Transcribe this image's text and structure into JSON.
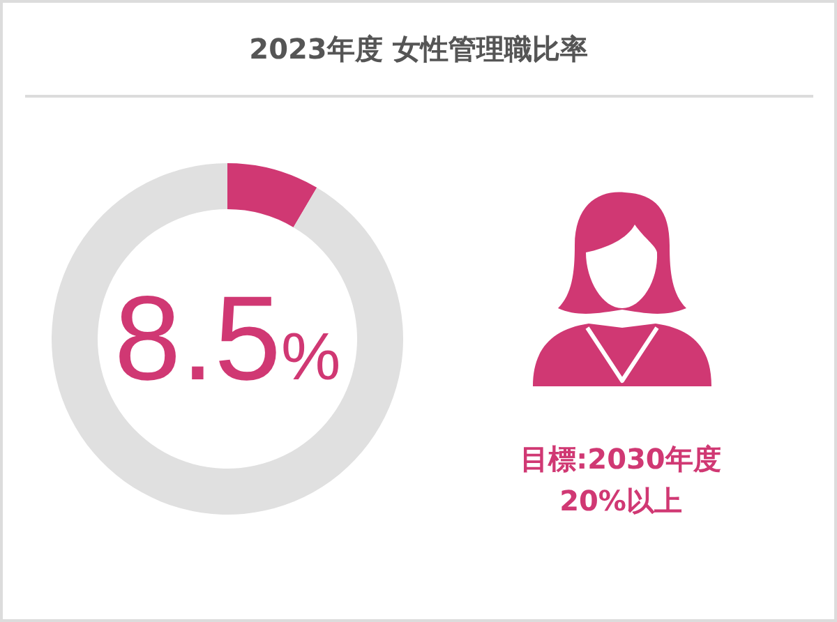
{
  "chart_data": {
    "type": "donut",
    "title": "2023年度 女性管理職比率",
    "categories": [
      null,
      null
    ],
    "values": [
      8.5,
      91.5
    ],
    "colors": [
      "#d03873",
      "#e0e0e0"
    ],
    "value_labels": [
      "8.5%",
      null
    ],
    "annotations": [
      "目標:2030年度",
      "20%以上"
    ]
  }
}
